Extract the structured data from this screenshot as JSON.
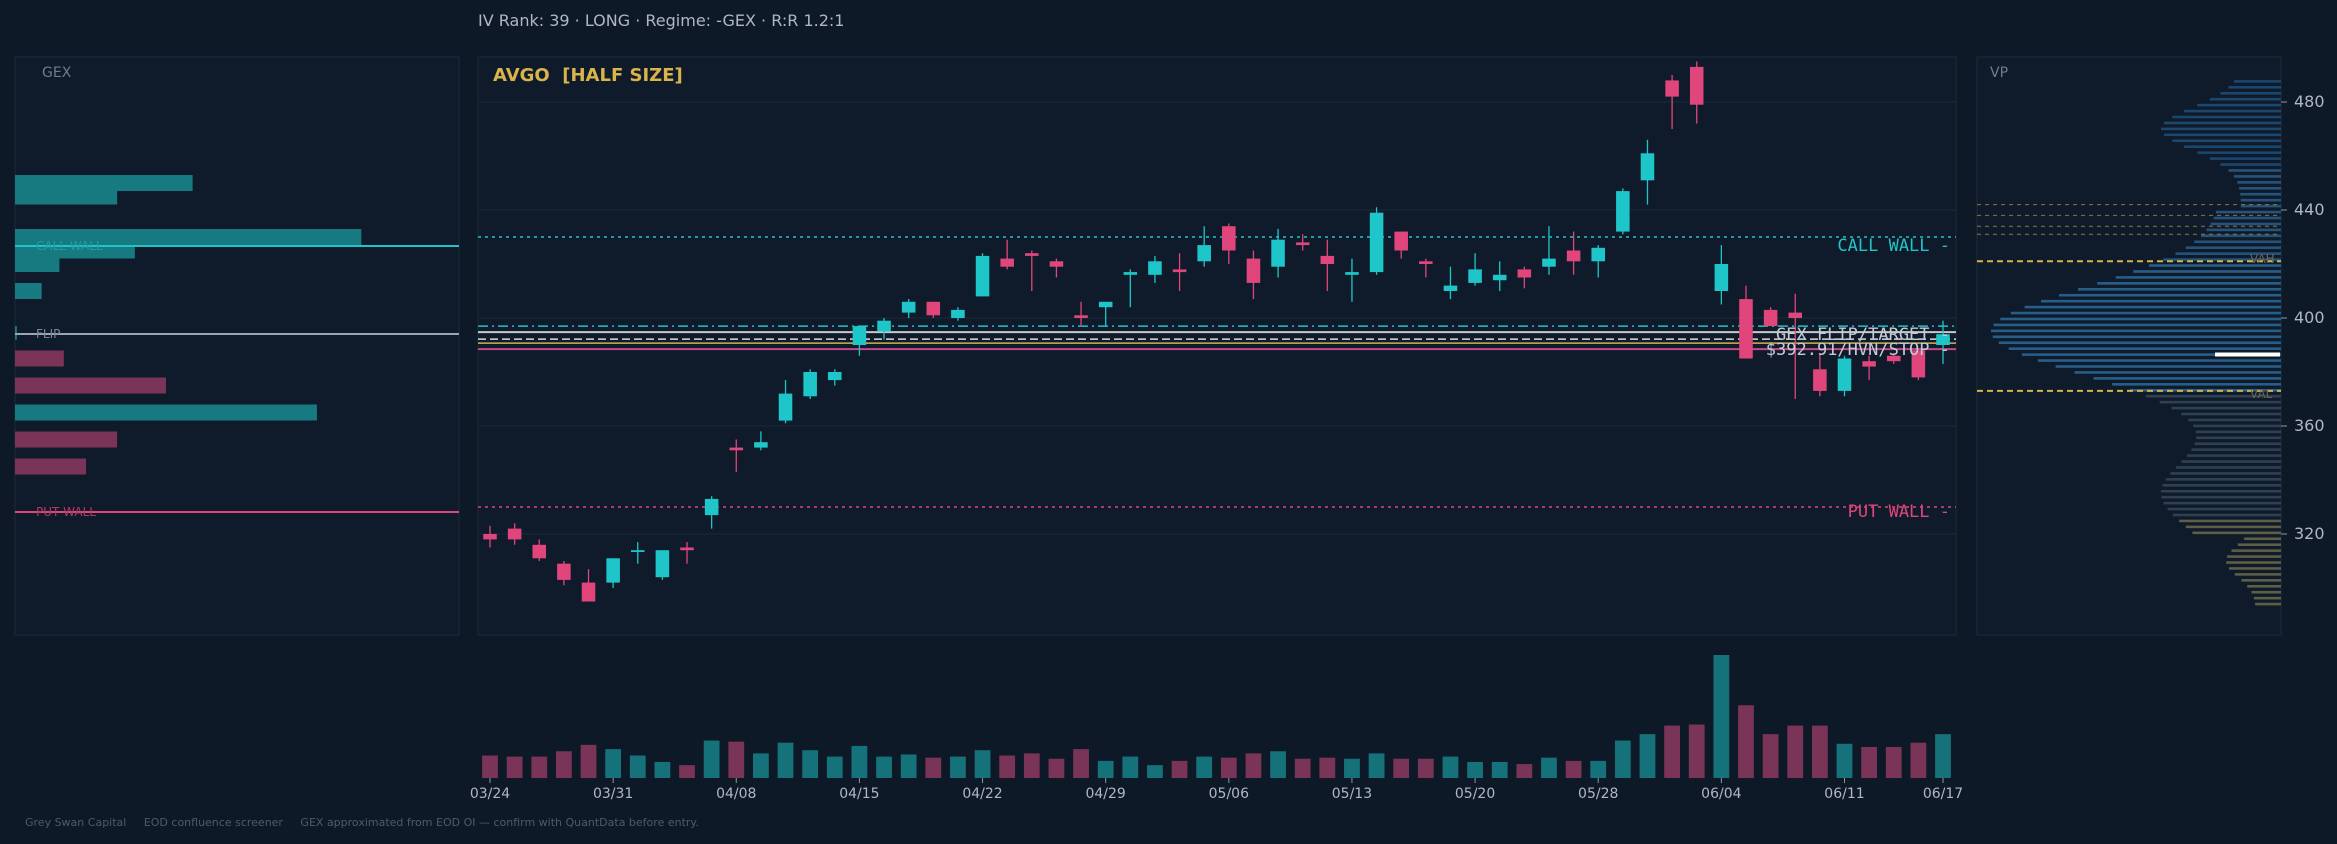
{
  "header": {
    "status_line": "IV Rank: 39  ·  LONG  ·  Regime: -GEX  ·  R:R 1.2:1"
  },
  "gex_panel": {
    "label": "GEX",
    "call_wall_label": "CALL WALL",
    "flip_label": "FLIP",
    "put_wall_label": "PUT WALL"
  },
  "main_panel": {
    "title": "AVGO  [HALF SIZE]",
    "call_wall_label": "CALL WALL -",
    "put_wall_label": "PUT WALL -",
    "flip_label": "GEX FLIP/TARGET -",
    "stop_label": "$392.91/HVN/STOP -"
  },
  "vp_panel": {
    "label": "VP",
    "vah_label": "VAH",
    "val_label": "VAL"
  },
  "footer": {
    "text": "Grey Swan Capital     EOD confluence screener     GEX approximated from EOD OI — confirm with QuantData before entry."
  },
  "colors": {
    "background": "#0e1928",
    "bull": "#1fc6c9",
    "bear": "#e0467c",
    "call_wall": "#22c3c8",
    "put_wall": "#e0467c",
    "flip": "#9aa6b4",
    "title": "#d9b44a",
    "vah_val": "#d2b44c"
  },
  "levels": {
    "call_wall": 430,
    "put_wall": 330,
    "gex_flip": 397,
    "stop": 392.91,
    "vah": 421,
    "val": 373
  },
  "chart_data": {
    "type": "candlestick",
    "title": "AVGO  [HALF SIZE]",
    "ylim": [
      280,
      500
    ],
    "yticks": [
      320,
      360,
      400,
      440,
      480
    ],
    "xtick_labels": [
      "03/24",
      "03/31",
      "04/08",
      "04/15",
      "04/22",
      "04/29",
      "05/06",
      "05/13",
      "05/20",
      "05/28",
      "06/04",
      "06/11",
      "06/17"
    ],
    "xtick_index": [
      0,
      5,
      10,
      15,
      20,
      25,
      30,
      35,
      40,
      45,
      50,
      55,
      59
    ],
    "candles": [
      {
        "o": 320,
        "h": 323,
        "l": 315,
        "c": 318
      },
      {
        "o": 322,
        "h": 324,
        "l": 316,
        "c": 318
      },
      {
        "o": 316,
        "h": 318,
        "l": 310,
        "c": 311
      },
      {
        "o": 309,
        "h": 310,
        "l": 301,
        "c": 303
      },
      {
        "o": 302,
        "h": 307,
        "l": 296,
        "c": 295
      },
      {
        "o": 302,
        "h": 311,
        "l": 300,
        "c": 311
      },
      {
        "o": 314,
        "h": 317,
        "l": 309,
        "c": 314
      },
      {
        "o": 304,
        "h": 314,
        "l": 303,
        "c": 314
      },
      {
        "o": 315,
        "h": 317,
        "l": 309,
        "c": 314
      },
      {
        "o": 327,
        "h": 334,
        "l": 322,
        "c": 333
      },
      {
        "o": 352,
        "h": 355,
        "l": 343,
        "c": 351
      },
      {
        "o": 352,
        "h": 358,
        "l": 351,
        "c": 354
      },
      {
        "o": 362,
        "h": 377,
        "l": 361,
        "c": 372
      },
      {
        "o": 371,
        "h": 381,
        "l": 370,
        "c": 380
      },
      {
        "o": 377,
        "h": 381,
        "l": 375,
        "c": 380
      },
      {
        "o": 390,
        "h": 397,
        "l": 386,
        "c": 397
      },
      {
        "o": 395,
        "h": 400,
        "l": 392,
        "c": 399
      },
      {
        "o": 402,
        "h": 407,
        "l": 400,
        "c": 406
      },
      {
        "o": 406,
        "h": 406,
        "l": 400,
        "c": 401
      },
      {
        "o": 400,
        "h": 404,
        "l": 399,
        "c": 403
      },
      {
        "o": 408,
        "h": 424,
        "l": 408,
        "c": 423
      },
      {
        "o": 422,
        "h": 429,
        "l": 418,
        "c": 419
      },
      {
        "o": 424,
        "h": 425,
        "l": 410,
        "c": 423
      },
      {
        "o": 421,
        "h": 422,
        "l": 415,
        "c": 419
      },
      {
        "o": 401,
        "h": 406,
        "l": 397,
        "c": 400
      },
      {
        "o": 404,
        "h": 406,
        "l": 397,
        "c": 406
      },
      {
        "o": 416,
        "h": 418,
        "l": 404,
        "c": 417
      },
      {
        "o": 416,
        "h": 423,
        "l": 413,
        "c": 421
      },
      {
        "o": 418,
        "h": 424,
        "l": 410,
        "c": 417
      },
      {
        "o": 421,
        "h": 434,
        "l": 419,
        "c": 427
      },
      {
        "o": 434,
        "h": 435,
        "l": 420,
        "c": 425
      },
      {
        "o": 422,
        "h": 425,
        "l": 407,
        "c": 413
      },
      {
        "o": 419,
        "h": 433,
        "l": 415,
        "c": 429
      },
      {
        "o": 428,
        "h": 431,
        "l": 425,
        "c": 427
      },
      {
        "o": 423,
        "h": 429,
        "l": 410,
        "c": 420
      },
      {
        "o": 416,
        "h": 422,
        "l": 406,
        "c": 417
      },
      {
        "o": 417,
        "h": 441,
        "l": 416,
        "c": 439
      },
      {
        "o": 432,
        "h": 432,
        "l": 422,
        "c": 425
      },
      {
        "o": 421,
        "h": 422,
        "l": 415,
        "c": 420
      },
      {
        "o": 410,
        "h": 419,
        "l": 407,
        "c": 412
      },
      {
        "o": 413,
        "h": 424,
        "l": 412,
        "c": 418
      },
      {
        "o": 414,
        "h": 421,
        "l": 410,
        "c": 416
      },
      {
        "o": 418,
        "h": 419,
        "l": 411,
        "c": 415
      },
      {
        "o": 419,
        "h": 434,
        "l": 416,
        "c": 422
      },
      {
        "o": 425,
        "h": 432,
        "l": 416,
        "c": 421
      },
      {
        "o": 421,
        "h": 427,
        "l": 415,
        "c": 426
      },
      {
        "o": 432,
        "h": 448,
        "l": 431,
        "c": 447
      },
      {
        "o": 451,
        "h": 466,
        "l": 442,
        "c": 461
      },
      {
        "o": 488,
        "h": 490,
        "l": 470,
        "c": 482
      },
      {
        "o": 493,
        "h": 495,
        "l": 472,
        "c": 479
      },
      {
        "o": 410,
        "h": 427,
        "l": 405,
        "c": 420
      },
      {
        "o": 407,
        "h": 412,
        "l": 385,
        "c": 385
      },
      {
        "o": 403,
        "h": 404,
        "l": 397,
        "c": 397
      },
      {
        "o": 402,
        "h": 409,
        "l": 370,
        "c": 400
      },
      {
        "o": 381,
        "h": 387,
        "l": 371,
        "c": 373
      },
      {
        "o": 373,
        "h": 386,
        "l": 371,
        "c": 385
      },
      {
        "o": 384,
        "h": 386,
        "l": 377,
        "c": 382
      },
      {
        "o": 386,
        "h": 387,
        "l": 383,
        "c": 384
      },
      {
        "o": 388,
        "h": 388,
        "l": 377,
        "c": 378
      },
      {
        "o": 390,
        "h": 399,
        "l": 383,
        "c": 394
      }
    ],
    "volume": [
      2.1,
      2.0,
      2.0,
      2.5,
      3.1,
      2.7,
      2.1,
      1.5,
      1.2,
      3.5,
      3.4,
      2.3,
      3.3,
      2.6,
      2.0,
      3.0,
      2.0,
      2.2,
      1.9,
      2.0,
      2.6,
      2.1,
      2.3,
      1.8,
      2.7,
      1.6,
      2.0,
      1.2,
      1.6,
      2.0,
      1.9,
      2.3,
      2.5,
      1.8,
      1.9,
      1.8,
      2.3,
      1.8,
      1.8,
      2.0,
      1.5,
      1.5,
      1.3,
      1.9,
      1.6,
      1.6,
      3.5,
      4.1,
      4.9,
      5.0,
      11.5,
      6.8,
      4.1,
      4.9,
      4.9,
      3.2,
      2.9,
      2.9,
      3.3,
      4.1
    ],
    "gex_bars": [
      {
        "strike": 450,
        "value": 0.4
      },
      {
        "strike": 445,
        "value": 0.23
      },
      {
        "strike": 430,
        "value": 0.78
      },
      {
        "strike": 425,
        "value": 0.27
      },
      {
        "strike": 420,
        "value": 0.1
      },
      {
        "strike": 410,
        "value": 0.06
      },
      {
        "strike": 385,
        "value": -0.11
      },
      {
        "strike": 375,
        "value": -0.34
      },
      {
        "strike": 365,
        "value": 0.68
      },
      {
        "strike": 355,
        "value": -0.23
      },
      {
        "strike": 345,
        "value": -0.16
      }
    ]
  }
}
